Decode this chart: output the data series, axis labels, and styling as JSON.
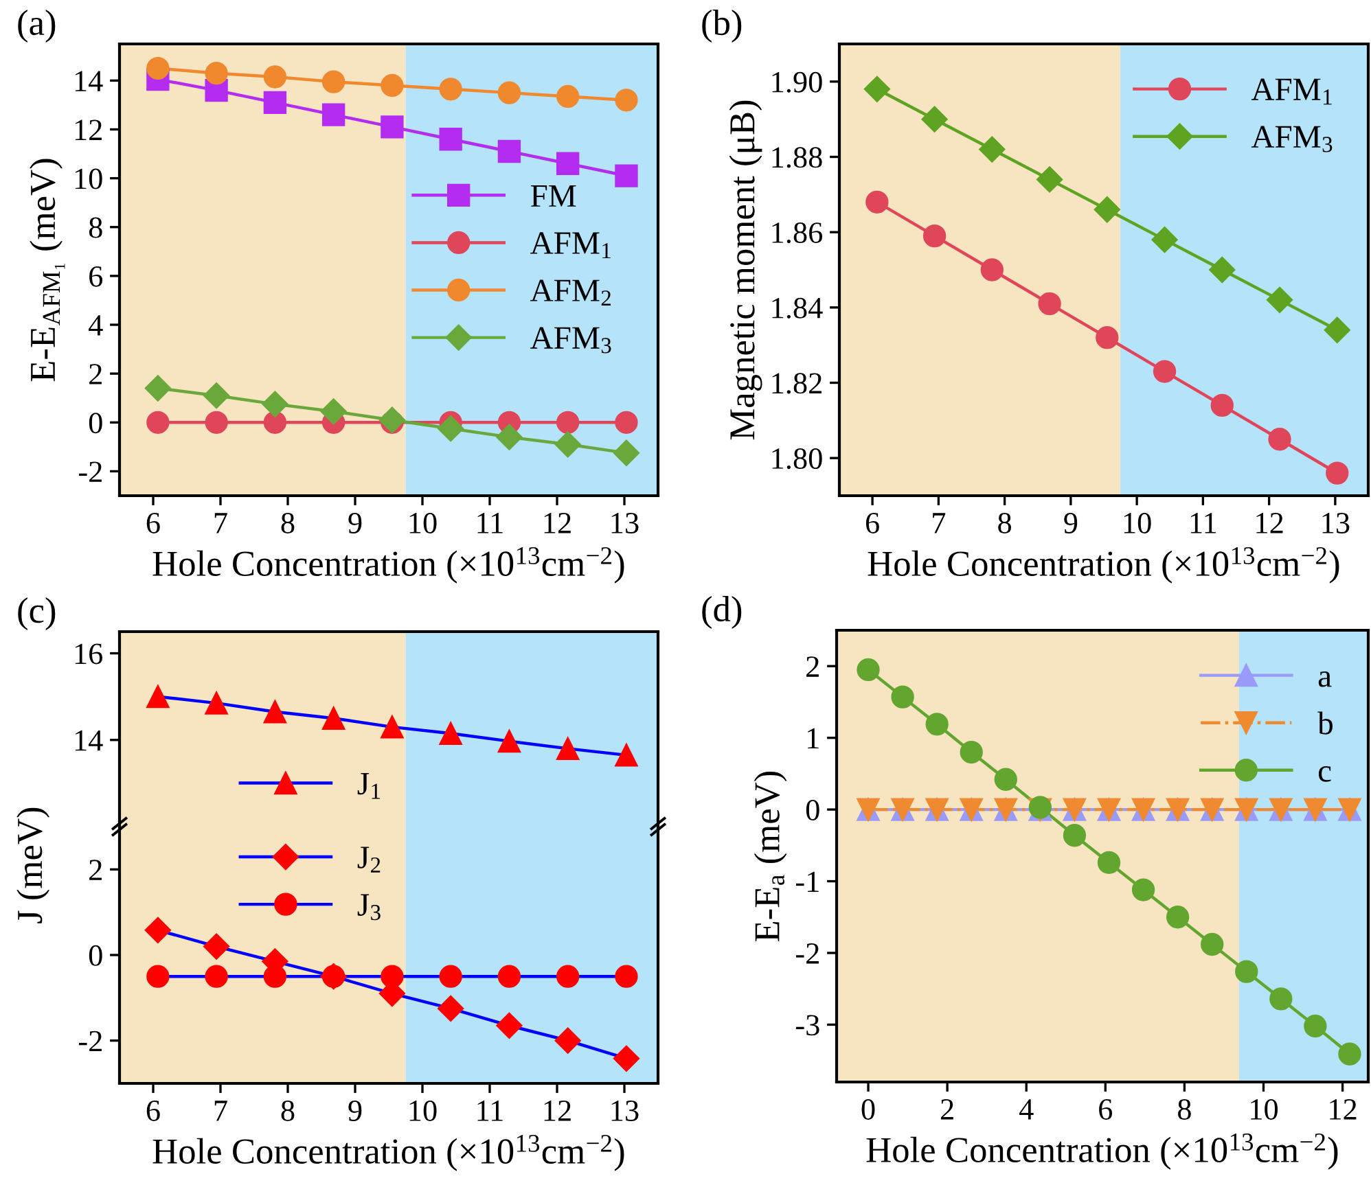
{
  "chart_data": [
    {
      "type": "line",
      "title": "(a)",
      "xlabel": "Hole Concentration (×10$^{13}$cm$^{−2}$)",
      "ylabel": "E-E$_{AFM₁}$ (meV)",
      "x": [
        6.07,
        6.94,
        7.81,
        8.68,
        9.55,
        10.42,
        11.29,
        12.16,
        13.03
      ],
      "xlim": [
        5.5,
        13.5
      ],
      "xticks": [
        6,
        7,
        8,
        9,
        10,
        11,
        12,
        13
      ],
      "ylim": [
        -3,
        15.5
      ],
      "yticks": [
        -2,
        0,
        2,
        4,
        6,
        8,
        10,
        12,
        14
      ],
      "legend": "center right",
      "grid": false,
      "bands": [
        {
          "axis": "x",
          "from": 5.5,
          "to": 9.75,
          "color": "#f7e4c0"
        },
        {
          "axis": "x",
          "from": 9.75,
          "to": 13.5,
          "color": "#b5e3fa"
        }
      ],
      "series": [
        {
          "name": "FM",
          "color": "#b32cf0",
          "marker": "square",
          "values": [
            14.05,
            13.6,
            13.1,
            12.6,
            12.1,
            11.6,
            11.1,
            10.6,
            10.1
          ]
        },
        {
          "name": "AFM$_{1}$",
          "color": "#e0465a",
          "marker": "circle",
          "values": [
            0,
            0,
            0,
            0,
            0,
            0,
            0,
            0,
            0
          ]
        },
        {
          "name": "AFM$_{2}$",
          "color": "#f0882e",
          "marker": "circle",
          "values": [
            14.5,
            14.3,
            14.15,
            13.95,
            13.8,
            13.65,
            13.5,
            13.35,
            13.2
          ]
        },
        {
          "name": "AFM$_{3}$",
          "color": "#6aa83c",
          "marker": "diamond",
          "values": [
            1.4,
            1.1,
            0.75,
            0.45,
            0.1,
            -0.25,
            -0.6,
            -0.9,
            -1.25
          ]
        }
      ]
    },
    {
      "type": "line",
      "title": "(b)",
      "xlabel": "Hole Concentration (×10$^{13}$cm$^{−2}$)",
      "ylabel": "Magnetic moment (μB)",
      "x": [
        6.07,
        6.94,
        7.81,
        8.68,
        9.55,
        10.42,
        11.29,
        12.16,
        13.03
      ],
      "xlim": [
        5.5,
        13.5
      ],
      "xticks": [
        6,
        7,
        8,
        9,
        10,
        11,
        12,
        13
      ],
      "ylim": [
        1.79,
        1.91
      ],
      "yticks": [
        {
          "value": 1.8,
          "label": "1.80"
        },
        {
          "value": 1.82,
          "label": "1.82"
        },
        {
          "value": 1.84,
          "label": "1.84"
        },
        {
          "value": 1.86,
          "label": "1.86"
        },
        {
          "value": 1.88,
          "label": "1.88"
        },
        {
          "value": 1.9,
          "label": "1.90"
        }
      ],
      "legend": "top right",
      "grid": false,
      "bands": [
        {
          "axis": "x",
          "from": 5.5,
          "to": 9.75,
          "color": "#f7e4c0"
        },
        {
          "axis": "x",
          "from": 9.75,
          "to": 13.5,
          "color": "#b5e3fa"
        }
      ],
      "series": [
        {
          "name": "AFM$_{1}$",
          "color": "#e0465a",
          "marker": "circle",
          "values": [
            1.868,
            1.859,
            1.85,
            1.841,
            1.832,
            1.823,
            1.814,
            1.805,
            1.796
          ]
        },
        {
          "name": "AFM$_{3}$",
          "color": "#5ea322",
          "marker": "diamond",
          "values": [
            1.898,
            1.89,
            1.882,
            1.874,
            1.866,
            1.858,
            1.85,
            1.842,
            1.834
          ]
        }
      ]
    },
    {
      "type": "line",
      "title": "(c)",
      "x": [
        6.07,
        6.94,
        7.81,
        8.68,
        9.55,
        10.42,
        11.29,
        12.16,
        13.03
      ],
      "xlim": [
        5.5,
        13.5
      ],
      "xticks": [
        6,
        7,
        8,
        9,
        10,
        11,
        12,
        13
      ],
      "ylim": [
        12,
        16.5
      ],
      "yticks": [
        14,
        16
      ],
      "tick_labels": "y",
      "legend": "bottom left",
      "grid": false,
      "bands": [
        {
          "axis": "x",
          "from": 5.5,
          "to": 9.75,
          "color": "#f7e4c0"
        },
        {
          "axis": "x",
          "from": 9.75,
          "to": 13.5,
          "color": "#b5e3fa"
        }
      ],
      "series": [
        {
          "name": "J$_{1}$",
          "color": "#0000ff",
          "colors": [
            "#ff0000",
            "#ff0000",
            "#ff0000",
            "#ff0000",
            "#ff0000",
            "#ff0000",
            "#ff0000",
            "#ff0000",
            "#ff0000"
          ],
          "marker": "triangle",
          "values": [
            15.0,
            14.85,
            14.65,
            14.5,
            14.3,
            14.15,
            13.97,
            13.8,
            13.65
          ]
        }
      ]
    },
    {
      "type": "line",
      "xlabel": "Hole Concentration (×10$^{13}$cm$^{−2}$)",
      "ylabel": "J (meV)",
      "x": [
        6.07,
        6.94,
        7.81,
        8.68,
        9.55,
        10.42,
        11.29,
        12.16,
        13.03
      ],
      "xlim": [
        5.5,
        13.5
      ],
      "xticks": [
        6,
        7,
        8,
        9,
        10,
        11,
        12,
        13
      ],
      "ylim": [
        -3,
        3
      ],
      "yticks": [
        -2,
        0,
        2
      ],
      "legend": "top left",
      "grid": false,
      "bands": [
        {
          "axis": "x",
          "from": 5.5,
          "to": 9.75,
          "color": "#f7e4c0"
        },
        {
          "axis": "x",
          "from": 9.75,
          "to": 13.5,
          "color": "#b5e3fa"
        }
      ],
      "series": [
        {
          "name": "J$_{2}$",
          "color": "#0000ff",
          "colors": [
            "#ff0000",
            "#ff0000",
            "#ff0000",
            "#ff0000",
            "#ff0000",
            "#ff0000",
            "#ff0000",
            "#ff0000",
            "#ff0000"
          ],
          "marker": "diamond",
          "values": [
            0.58,
            0.2,
            -0.15,
            -0.5,
            -0.9,
            -1.25,
            -1.65,
            -2.0,
            -2.42
          ]
        },
        {
          "name": "J$_{3}$",
          "color": "#0000ff",
          "colors": [
            "#ff0000",
            "#ff0000",
            "#ff0000",
            "#ff0000",
            "#ff0000",
            "#ff0000",
            "#ff0000",
            "#ff0000",
            "#ff0000"
          ],
          "marker": "circle",
          "values": [
            -0.5,
            -0.5,
            -0.5,
            -0.5,
            -0.5,
            -0.5,
            -0.5,
            -0.5,
            -0.5
          ]
        }
      ]
    },
    {
      "type": "line",
      "title": "(d)",
      "xlabel": "Hole Concentration (×10$^{13}$cm$^{−2}$)",
      "ylabel": "E-E$_{a}$ (meV)",
      "x": [
        0,
        0.87,
        1.74,
        2.61,
        3.48,
        4.35,
        5.22,
        6.09,
        6.96,
        7.83,
        8.7,
        9.57,
        10.44,
        11.31,
        12.18
      ],
      "xlim": [
        -0.8,
        12.65
      ],
      "xticks": [
        0,
        2,
        4,
        6,
        8,
        10,
        12
      ],
      "ylim": [
        -3.8,
        2.5
      ],
      "yticks": [
        -3,
        -2,
        -1,
        0,
        1,
        2
      ],
      "legend": "top right",
      "grid": false,
      "bands": [
        {
          "axis": "x",
          "from": -0.8,
          "to": 9.38,
          "color": "#f7e4c0"
        },
        {
          "axis": "x",
          "from": 9.38,
          "to": 12.65,
          "color": "#b5e3fa"
        }
      ],
      "series": [
        {
          "name": "a",
          "color": "#9a9af8",
          "marker": "triangle",
          "values": [
            0,
            0,
            0,
            0,
            0,
            0,
            0,
            0,
            0,
            0,
            0,
            0,
            0,
            0,
            0
          ]
        },
        {
          "name": "b",
          "color": "#f08a30",
          "marker": "triangle_down",
          "line_style": "dashdot",
          "values": [
            0,
            0,
            0,
            0,
            0,
            0,
            0,
            0,
            0,
            0,
            0,
            0,
            0,
            0,
            0
          ]
        },
        {
          "name": "c",
          "color": "#62a630",
          "marker": "circle",
          "values": [
            1.95,
            1.57,
            1.19,
            0.8,
            0.42,
            0.03,
            -0.36,
            -0.74,
            -1.12,
            -1.5,
            -1.88,
            -2.26,
            -2.64,
            -3.02,
            -3.41
          ]
        }
      ]
    }
  ]
}
